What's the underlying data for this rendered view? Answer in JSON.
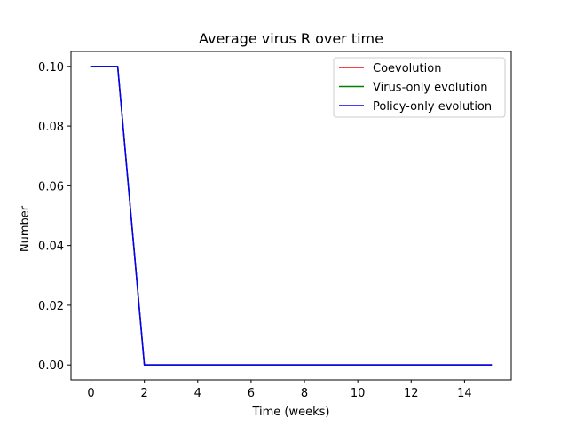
{
  "chart_data": {
    "type": "line",
    "title": "Average virus R over time",
    "xlabel": "Time (weeks)",
    "ylabel": "Number",
    "xlim": [
      -0.75,
      15.75
    ],
    "ylim": [
      -0.005,
      0.105
    ],
    "xticks": [
      0,
      2,
      4,
      6,
      8,
      10,
      12,
      14
    ],
    "yticks": [
      0.0,
      0.02,
      0.04,
      0.06,
      0.08,
      0.1
    ],
    "ytick_labels": [
      "0.00",
      "0.02",
      "0.04",
      "0.06",
      "0.08",
      "0.10"
    ],
    "grid": false,
    "legend_position": "top-right",
    "x": [
      0,
      1,
      2,
      3,
      4,
      5,
      6,
      7,
      8,
      9,
      10,
      11,
      12,
      13,
      14,
      15
    ],
    "series": [
      {
        "name": "Coevolution",
        "color": "#ff0000",
        "values": [
          0.1,
          0.1,
          0,
          0,
          0,
          0,
          0,
          0,
          0,
          0,
          0,
          0,
          0,
          0,
          0,
          0
        ]
      },
      {
        "name": "Virus-only evolution",
        "color": "#008000",
        "values": [
          0.1,
          0.1,
          0,
          0,
          0,
          0,
          0,
          0,
          0,
          0,
          0,
          0,
          0,
          0,
          0,
          0
        ]
      },
      {
        "name": "Policy-only evolution",
        "color": "#0000ff",
        "values": [
          0.1,
          0.1,
          0,
          0,
          0,
          0,
          0,
          0,
          0,
          0,
          0,
          0,
          0,
          0,
          0,
          0
        ]
      }
    ]
  }
}
